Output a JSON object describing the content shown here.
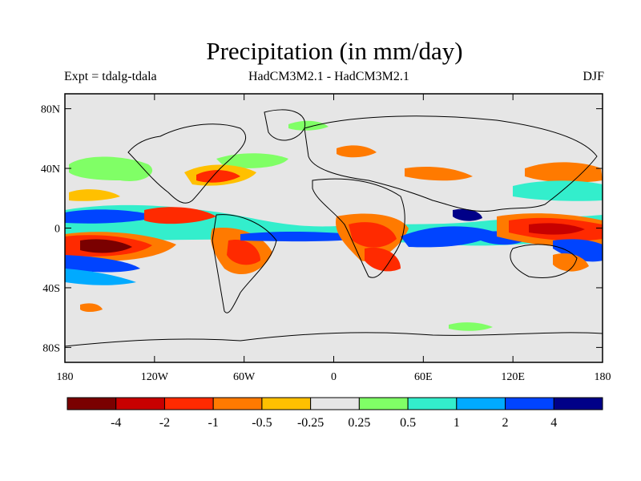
{
  "title": "Precipitation (in mm/day)",
  "subtitle_left": "Expt = tdalg-tdala",
  "subtitle_center": "HadCM3M2.1 - HadCM3M2.1",
  "subtitle_right": "DJF",
  "map": {
    "ocean_color": "#e6e6e6",
    "lat_ticks": [
      {
        "value": 80,
        "label": "80N"
      },
      {
        "value": 40,
        "label": "40N"
      },
      {
        "value": 0,
        "label": "0"
      },
      {
        "value": -40,
        "label": "40S"
      },
      {
        "value": -80,
        "label": "80S"
      }
    ],
    "lon_ticks": [
      {
        "value": -180,
        "label": "180"
      },
      {
        "value": -120,
        "label": "120W"
      },
      {
        "value": -60,
        "label": "60W"
      },
      {
        "value": 0,
        "label": "0"
      },
      {
        "value": 60,
        "label": "60E"
      },
      {
        "value": 120,
        "label": "120E"
      },
      {
        "value": 180,
        "label": "180"
      }
    ]
  },
  "colorbar": {
    "colors": [
      "#7a0000",
      "#c80000",
      "#ff2a00",
      "#ff7a00",
      "#ffc000",
      "#e6e6e6",
      "#80ff66",
      "#33eecc",
      "#00aaff",
      "#0044ff",
      "#000088"
    ],
    "labels": [
      "-4",
      "-2",
      "-1",
      "-0.5",
      "-0.25",
      "0.25",
      "0.5",
      "1",
      "2",
      "4"
    ]
  },
  "chart_data": {
    "type": "heatmap",
    "xlim": [
      -180,
      180
    ],
    "ylim": [
      -90,
      90
    ],
    "levels": [
      -4,
      -2,
      -1,
      -0.5,
      -0.25,
      0.25,
      0.5,
      1,
      2,
      4
    ],
    "anomaly_regions": [
      {
        "lon": -150,
        "lat": -12,
        "value": -5
      },
      {
        "lon": -160,
        "lat": -10,
        "value": -2
      },
      {
        "lon": -130,
        "lat": 8,
        "value": -1
      },
      {
        "lon": -170,
        "lat": -25,
        "value": 2
      },
      {
        "lon": -150,
        "lat": 40,
        "value": 0.5
      },
      {
        "lon": -60,
        "lat": -20,
        "value": -1
      },
      {
        "lon": -30,
        "lat": -2,
        "value": 2
      },
      {
        "lon": 20,
        "lat": 0,
        "value": -2
      },
      {
        "lon": 25,
        "lat": -25,
        "value": -1
      },
      {
        "lon": 60,
        "lat": -5,
        "value": 2
      },
      {
        "lon": 95,
        "lat": 10,
        "value": 4
      },
      {
        "lon": 140,
        "lat": 2,
        "value": -2
      },
      {
        "lon": 150,
        "lat": -20,
        "value": -1
      },
      {
        "lon": 160,
        "lat": 40,
        "value": -0.5
      }
    ]
  }
}
